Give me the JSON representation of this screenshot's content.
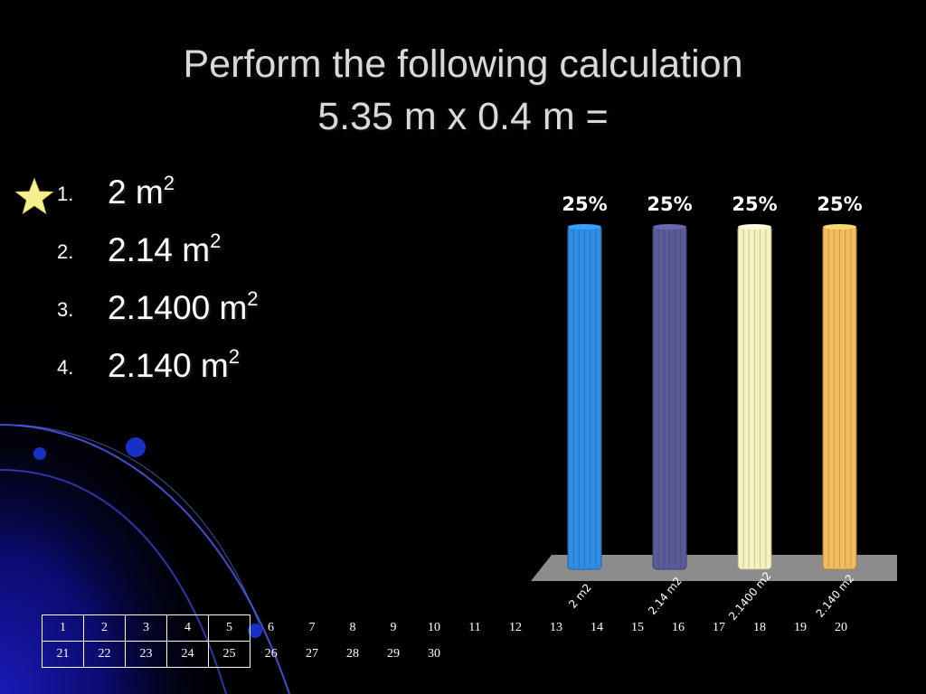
{
  "title": {
    "line1": "Perform the following calculation",
    "line2": "5.35 m x 0.4 m ="
  },
  "answers": [
    {
      "num": "1.",
      "text": "2 m",
      "sup": "2"
    },
    {
      "num": "2.",
      "text": "2.14 m",
      "sup": "2"
    },
    {
      "num": "3.",
      "text": "2.1400 m",
      "sup": "2"
    },
    {
      "num": "4.",
      "text": "2.140 m",
      "sup": "2"
    }
  ],
  "correct_marker_icon": "star-icon",
  "chart_data": {
    "type": "bar",
    "categories": [
      "2 m2",
      "2.14 m2",
      "2.1400 m2",
      "2.140 m2"
    ],
    "values": [
      25,
      25,
      25,
      25
    ],
    "data_labels": [
      "25%",
      "25%",
      "25%",
      "25%"
    ],
    "colors": [
      "#2f8de4",
      "#5b5b9a",
      "#f3f3c0",
      "#f2bb5c"
    ],
    "ylim": [
      0,
      25
    ],
    "grid": false,
    "legend": "none"
  },
  "response_grid": {
    "row1": [
      "1",
      "2",
      "3",
      "4",
      "5",
      "6",
      "7",
      "8",
      "9",
      "10",
      "11",
      "12",
      "13",
      "14",
      "15",
      "16",
      "17",
      "18",
      "19",
      "20"
    ],
    "row2": [
      "21",
      "22",
      "23",
      "24",
      "25",
      "26",
      "27",
      "28",
      "29",
      "30"
    ]
  }
}
